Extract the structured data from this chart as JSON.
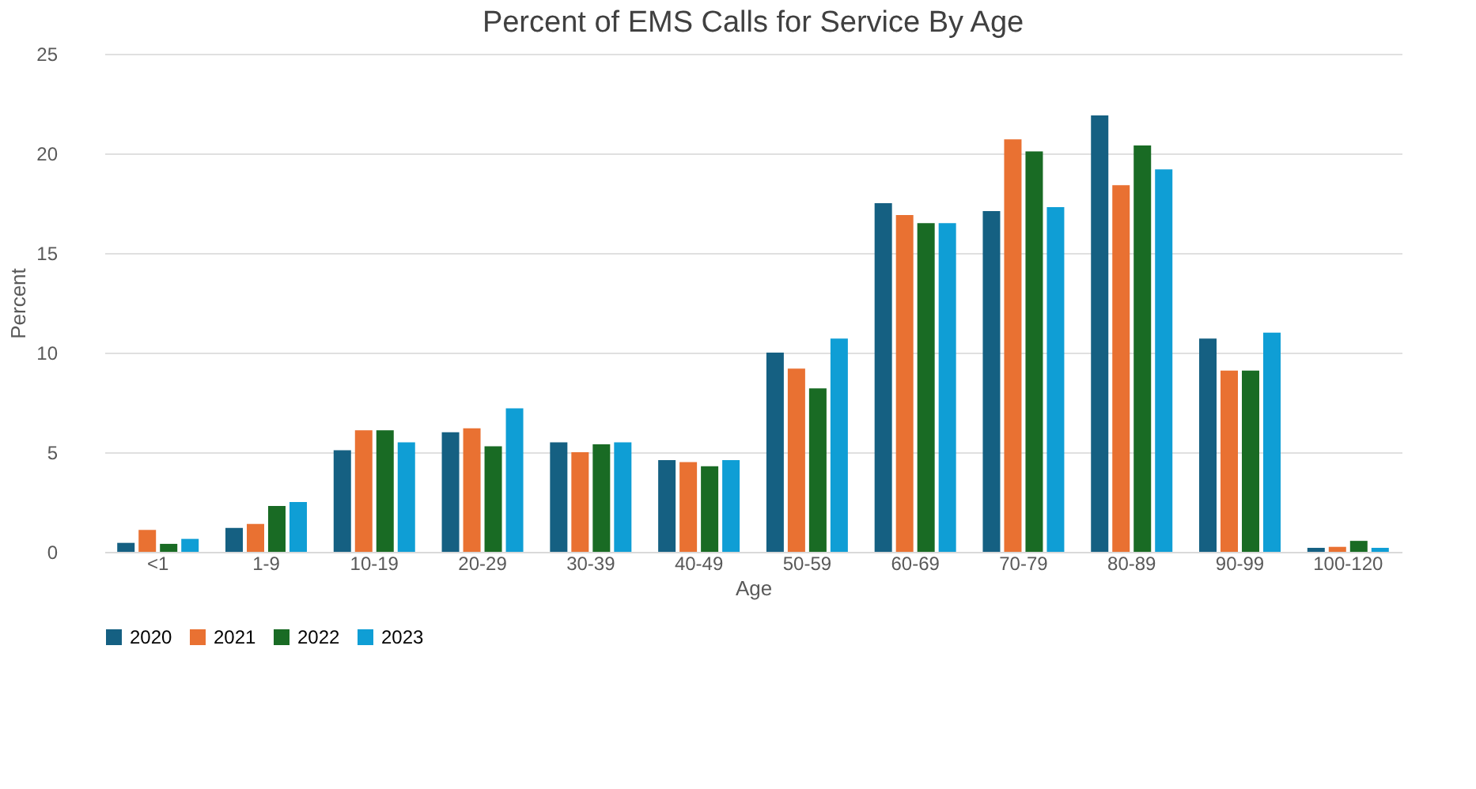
{
  "chart_data": {
    "type": "bar",
    "title": "Percent of EMS Calls for Service By Age",
    "xlabel": "Age",
    "ylabel": "Percent",
    "categories": [
      "<1",
      "1-9",
      "10-19",
      "20-29",
      "30-39",
      "40-49",
      "50-59",
      "60-69",
      "70-79",
      "80-89",
      "90-99",
      "100-120"
    ],
    "series": [
      {
        "name": "2020",
        "color": "#156082",
        "values": [
          0.45,
          1.2,
          5.1,
          6.0,
          5.5,
          4.6,
          10.0,
          17.5,
          17.1,
          21.9,
          10.7,
          0.2
        ]
      },
      {
        "name": "2021",
        "color": "#e97132",
        "values": [
          1.1,
          1.4,
          6.1,
          6.2,
          5.0,
          4.5,
          9.2,
          16.9,
          20.7,
          18.4,
          9.1,
          0.25
        ]
      },
      {
        "name": "2022",
        "color": "#196b24",
        "values": [
          0.4,
          2.3,
          6.1,
          5.3,
          5.4,
          4.3,
          8.2,
          16.5,
          20.1,
          20.4,
          9.1,
          0.55
        ]
      },
      {
        "name": "2023",
        "color": "#0f9ed5",
        "values": [
          0.65,
          2.5,
          5.5,
          7.2,
          5.5,
          4.6,
          10.7,
          16.5,
          17.3,
          19.2,
          11.0,
          0.2
        ]
      }
    ],
    "ylim": [
      0,
      25
    ],
    "yticks": [
      0,
      5,
      10,
      15,
      20,
      25
    ],
    "grid": "y",
    "legend": "bottom"
  }
}
